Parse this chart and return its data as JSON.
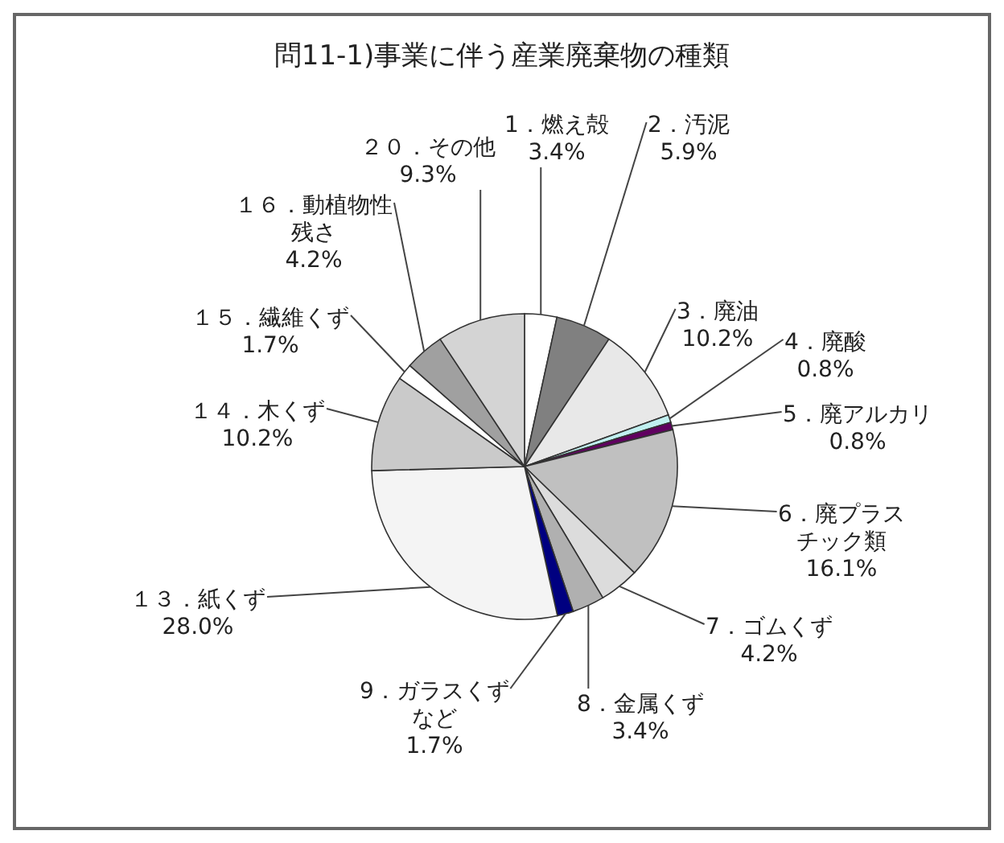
{
  "chart_data": {
    "type": "pie",
    "title": "問11-1)事業に伴う産業廃棄物の種類",
    "categories": [
      "1．燃え殻",
      "2．汚泥",
      "3．廃油",
      "4．廃酸",
      "5．廃アルカリ",
      "6．廃プラスチック類",
      "7．ゴムくず",
      "8．金属くず",
      "9．ガラスくずなど",
      "１３．紙くず",
      "１４．木くず",
      "１５．繊維くず",
      "１６．動植物性残さ",
      "２０．その他"
    ],
    "values": [
      3.4,
      5.9,
      10.2,
      0.8,
      0.8,
      16.1,
      4.2,
      3.4,
      1.7,
      28.0,
      10.2,
      1.7,
      4.2,
      9.3
    ],
    "value_labels": [
      "3.4%",
      "5.9%",
      "10.2%",
      "0.8%",
      "0.8%",
      "16.1%",
      "4.2%",
      "3.4%",
      "1.7%",
      "28.0%",
      "10.2%",
      "1.7%",
      "4.2%",
      "9.3%"
    ],
    "colors": [
      "#ffffff",
      "#808080",
      "#e8e8e8",
      "#c0f0f0",
      "#600060",
      "#c0c0c0",
      "#dcdcdc",
      "#b0b0b0",
      "#000080",
      "#f4f4f4",
      "#cacaca",
      "#ffffff",
      "#a0a0a0",
      "#d4d4d4"
    ]
  }
}
